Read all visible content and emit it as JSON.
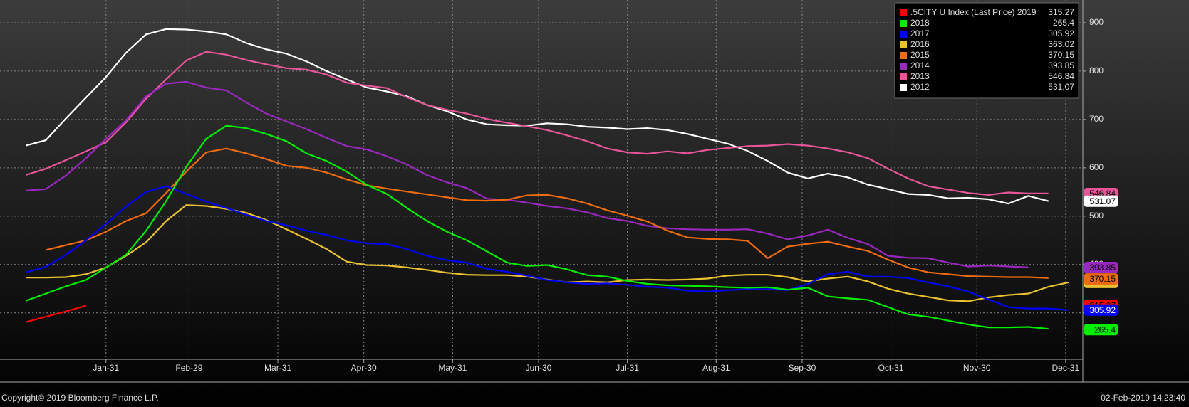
{
  "chart_data": {
    "type": "line",
    "x": [
      3,
      10,
      17,
      24,
      31,
      38,
      45,
      52,
      59,
      66,
      73,
      80,
      87,
      94,
      101,
      108,
      115,
      122,
      129,
      136,
      143,
      150,
      157,
      164,
      171,
      178,
      185,
      192,
      199,
      206,
      213,
      220,
      227,
      234,
      241,
      248,
      255,
      262,
      269,
      276,
      283,
      290,
      297,
      304,
      311,
      318,
      325,
      332,
      339,
      346,
      353,
      360,
      367
    ],
    "xlim": [
      -6,
      372
    ],
    "xticks": [
      {
        "value": 31,
        "label": "Jan-31"
      },
      {
        "value": 60,
        "label": "Feb-29"
      },
      {
        "value": 91,
        "label": "Mar-31"
      },
      {
        "value": 121,
        "label": "Apr-30"
      },
      {
        "value": 152,
        "label": "May-31"
      },
      {
        "value": 182,
        "label": "Jun-30"
      },
      {
        "value": 213,
        "label": "Jul-31"
      },
      {
        "value": 244,
        "label": "Aug-31"
      },
      {
        "value": 274,
        "label": "Sep-30"
      },
      {
        "value": 305,
        "label": "Oct-31"
      },
      {
        "value": 335,
        "label": "Nov-30"
      },
      {
        "value": 366,
        "label": "Dec-31"
      }
    ],
    "ylim": [
      204,
      947
    ],
    "yticks": [
      300,
      400,
      500,
      600,
      700,
      800,
      900
    ],
    "grid": true,
    "legend": "top-right",
    "series": [
      {
        "name": ".5CITY U Index (Last Price) 2019",
        "color": "#ff0000",
        "last_value": 315.27,
        "values": [
          281,
          292,
          303,
          315,
          null,
          null,
          null,
          null,
          null,
          null,
          null,
          null,
          null,
          null,
          null,
          null,
          null,
          null,
          null,
          null,
          null,
          null,
          null,
          null,
          null,
          null,
          null,
          null,
          null,
          null,
          null,
          null,
          null,
          null,
          null,
          null,
          null,
          null,
          null,
          null,
          null,
          null,
          null,
          null,
          null,
          null,
          null,
          null,
          null,
          null,
          null,
          null,
          null
        ]
      },
      {
        "name": "2018",
        "color": "#00ee00",
        "last_value": 265.4,
        "values": [
          325,
          340,
          355,
          368,
          394,
          420,
          470,
          531,
          602,
          660,
          687,
          682,
          670,
          655,
          630,
          614,
          592,
          565,
          546,
          517,
          490,
          468,
          450,
          427,
          404,
          397,
          399,
          390,
          378,
          375,
          366,
          360,
          357,
          356,
          355,
          353,
          352,
          353,
          348,
          352,
          334,
          330,
          327,
          312,
          297,
          292,
          284,
          276,
          270,
          270,
          271,
          267,
          null
        ]
      },
      {
        "name": "2017",
        "color": "#0000ff",
        "last_value": 305.92,
        "values": [
          384,
          395,
          420,
          450,
          484,
          520,
          550,
          562,
          546,
          530,
          517,
          503,
          490,
          481,
          470,
          461,
          450,
          444,
          442,
          432,
          418,
          409,
          404,
          391,
          385,
          377,
          368,
          363,
          360,
          361,
          358,
          354,
          352,
          346,
          344,
          347,
          349,
          349,
          347,
          360,
          380,
          385,
          375,
          375,
          372,
          363,
          355,
          344,
          328,
          312,
          309,
          309,
          306
        ]
      },
      {
        "name": "2016",
        "color": "#e8c030",
        "last_value": 363.02,
        "values": [
          373,
          373,
          374,
          380,
          394,
          418,
          446,
          490,
          523,
          521,
          515,
          507,
          492,
          473,
          453,
          432,
          406,
          399,
          398,
          394,
          389,
          383,
          379,
          378,
          378,
          375,
          369,
          363,
          365,
          363,
          368,
          369,
          368,
          369,
          371,
          377,
          379,
          379,
          374,
          365,
          371,
          375,
          365,
          350,
          340,
          333,
          326,
          324,
          332,
          337,
          340,
          354,
          363
        ]
      },
      {
        "name": "2015",
        "color": "#f06a10",
        "last_value": 370.15,
        "values": [
          null,
          430,
          440,
          450,
          468,
          490,
          506,
          548,
          592,
          632,
          640,
          630,
          618,
          604,
          600,
          590,
          576,
          564,
          557,
          551,
          545,
          539,
          533,
          532,
          534,
          543,
          544,
          537,
          526,
          512,
          501,
          489,
          470,
          456,
          453,
          452,
          449,
          413,
          437,
          443,
          447,
          437,
          428,
          410,
          394,
          384,
          380,
          376,
          375,
          374,
          374,
          372,
          null
        ]
      },
      {
        "name": "2014",
        "color": "#9a28c0",
        "last_value": 393.85,
        "values": [
          553,
          556,
          584,
          620,
          660,
          698,
          748,
          774,
          778,
          766,
          760,
          735,
          712,
          696,
          680,
          662,
          645,
          638,
          624,
          607,
          585,
          570,
          558,
          536,
          534,
          528,
          521,
          516,
          508,
          496,
          490,
          480,
          475,
          473,
          472,
          472,
          473,
          464,
          452,
          460,
          472,
          455,
          442,
          418,
          414,
          413,
          404,
          396,
          398,
          396,
          394,
          null,
          null
        ]
      },
      {
        "name": "2013",
        "color": "#e8559a",
        "last_value": 546.84,
        "values": [
          585,
          598,
          616,
          634,
          653,
          694,
          743,
          783,
          822,
          840,
          834,
          823,
          814,
          806,
          803,
          793,
          776,
          770,
          765,
          746,
          730,
          720,
          712,
          701,
          693,
          686,
          678,
          667,
          655,
          640,
          632,
          629,
          634,
          630,
          637,
          641,
          645,
          646,
          649,
          646,
          640,
          632,
          620,
          598,
          578,
          562,
          555,
          548,
          544,
          549,
          547,
          547,
          null
        ]
      },
      {
        "name": "2012",
        "color": "#ffffff",
        "last_value": 531.07,
        "values": [
          646,
          657,
          702,
          745,
          788,
          838,
          876,
          887,
          886,
          882,
          876,
          858,
          845,
          836,
          820,
          800,
          783,
          766,
          758,
          748,
          730,
          717,
          700,
          690,
          688,
          687,
          692,
          690,
          685,
          683,
          680,
          682,
          678,
          670,
          660,
          650,
          635,
          614,
          590,
          578,
          588,
          580,
          565,
          556,
          546,
          544,
          537,
          538,
          535,
          526,
          542,
          531,
          null
        ]
      }
    ],
    "footer_left": "Copyright© 2019 Bloomberg Finance L.P.",
    "footer_right": "02-Feb-2019 14:23:40"
  }
}
